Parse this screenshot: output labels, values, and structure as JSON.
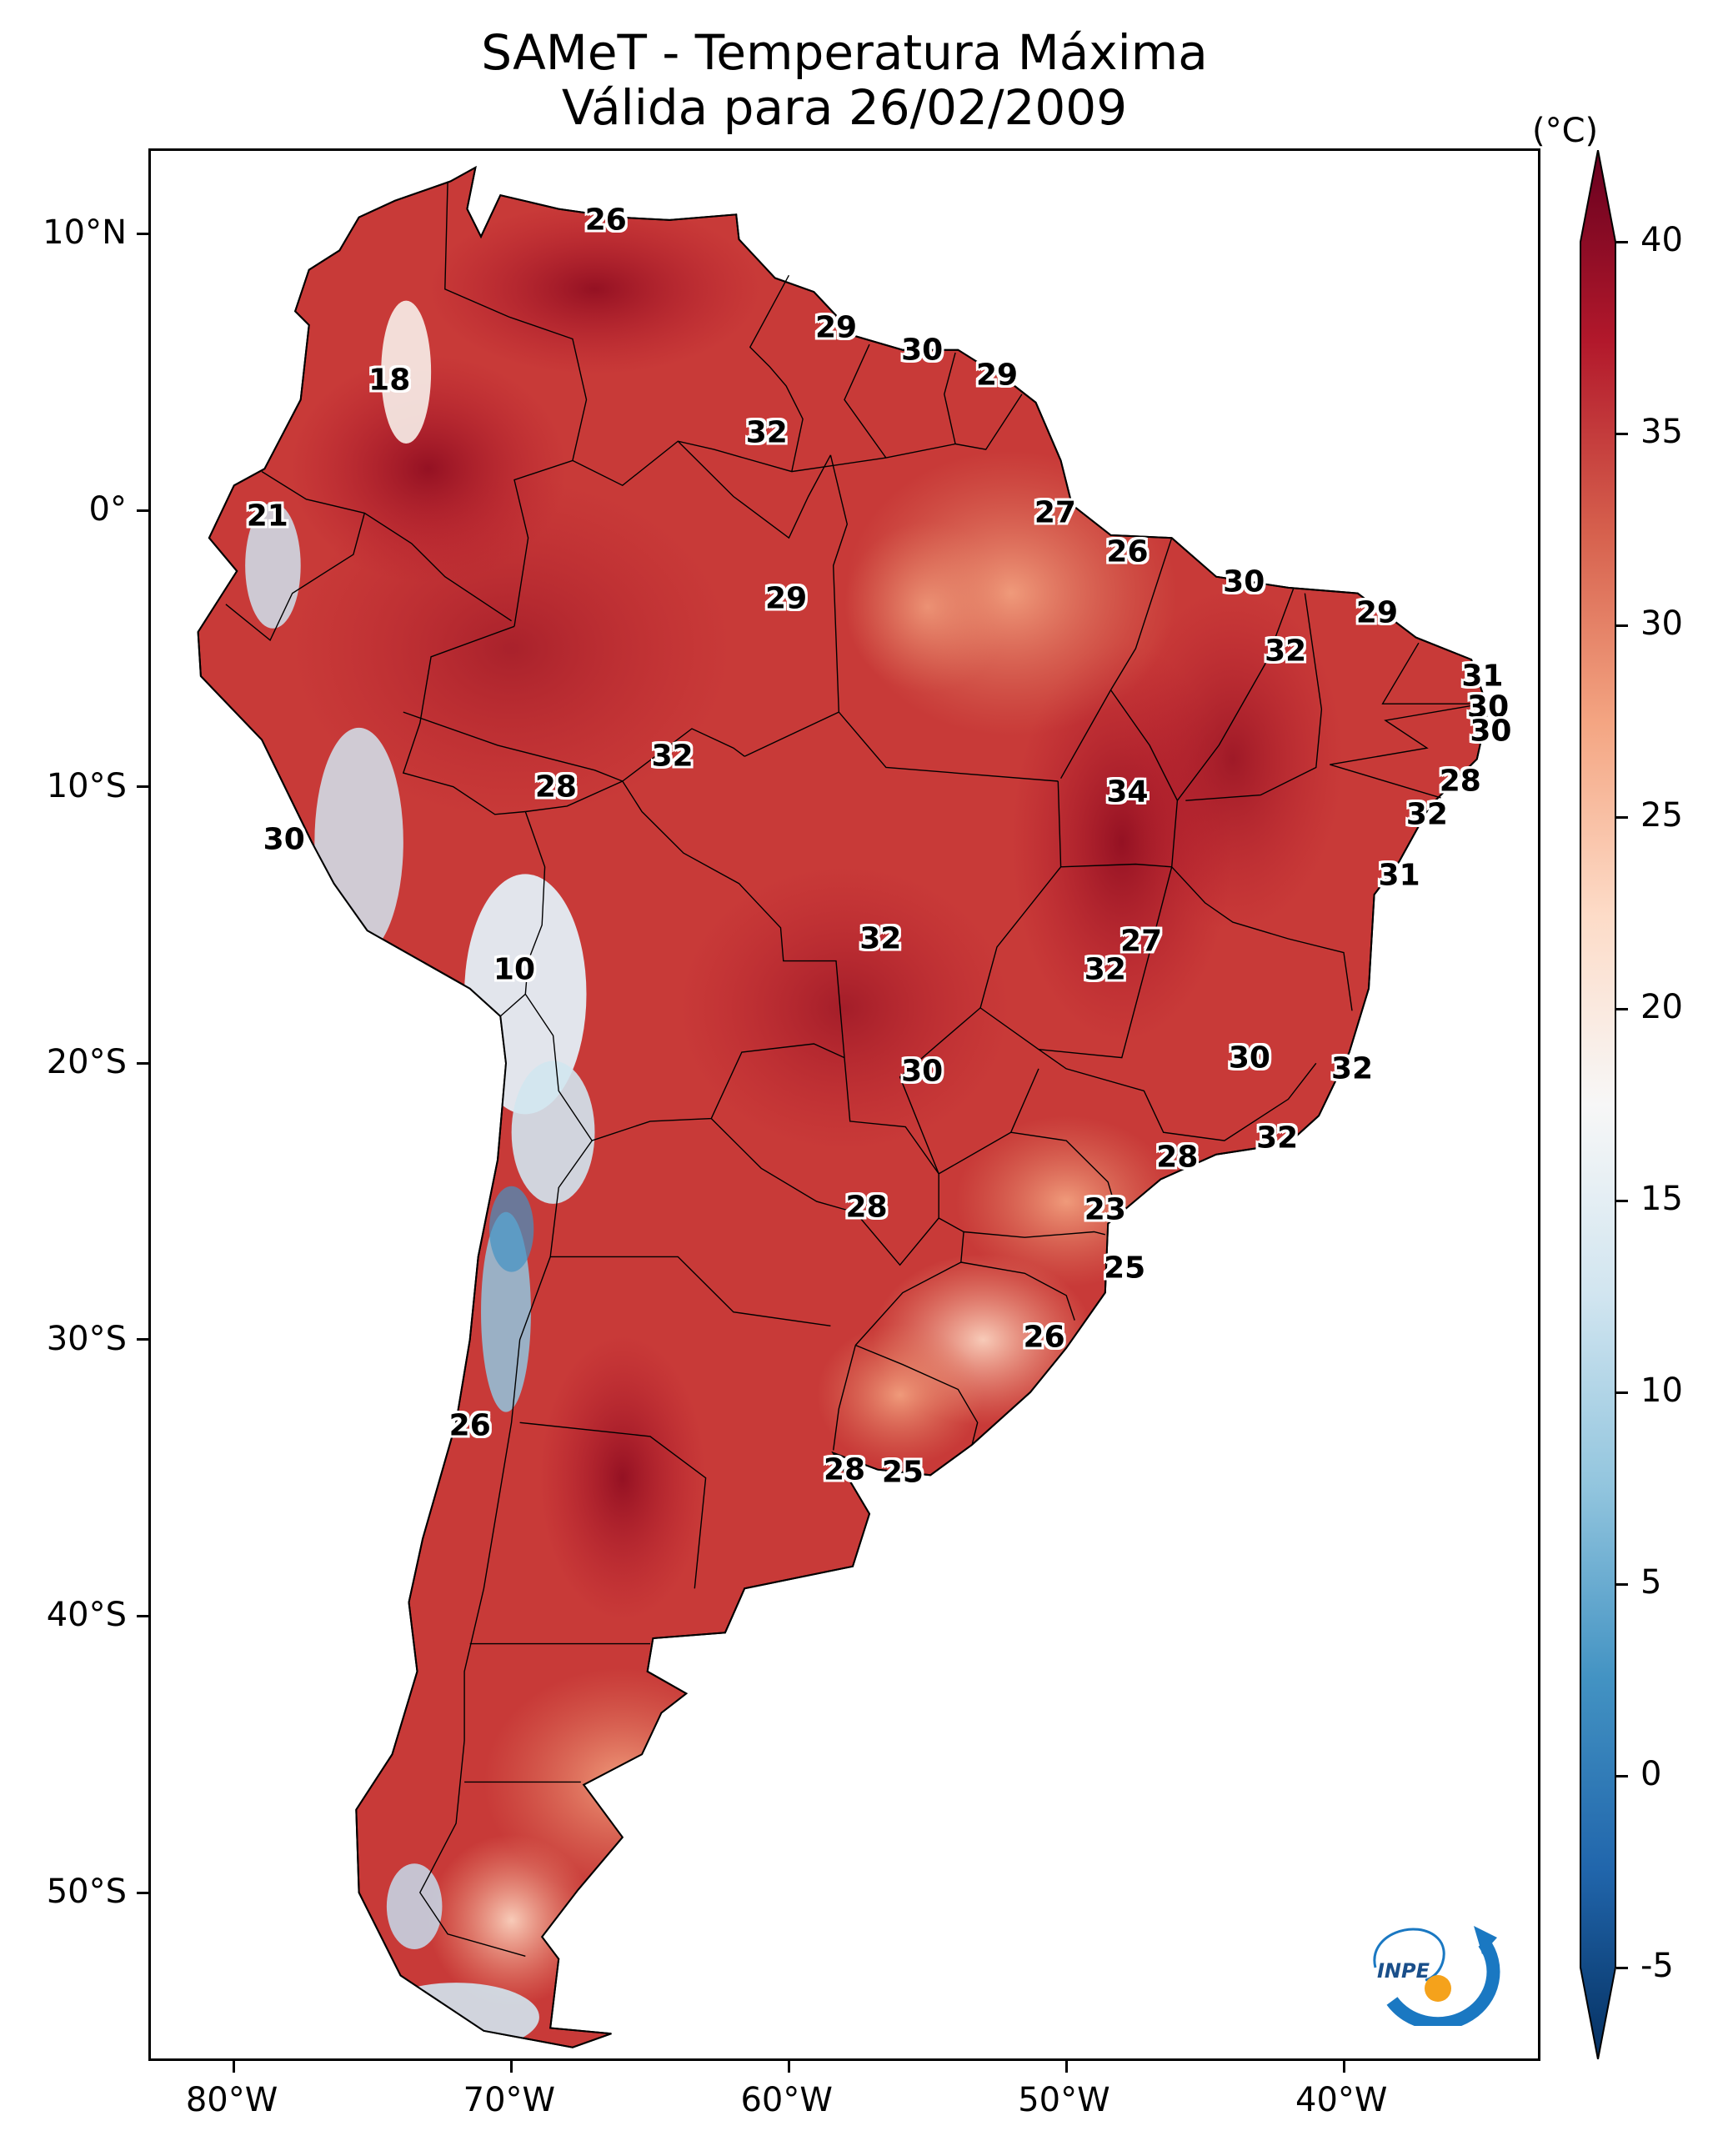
{
  "title": {
    "line1": "SAMeT - Temperatura Máxima",
    "line2": "Válida para 26/02/2009"
  },
  "axes": {
    "lon_labels": [
      "80°W",
      "70°W",
      "60°W",
      "50°W",
      "40°W"
    ],
    "lat_labels": [
      "10°N",
      "0°",
      "10°S",
      "20°S",
      "30°S",
      "40°S",
      "50°S"
    ],
    "lon_range": [
      -83,
      -33
    ],
    "lat_range": [
      13,
      -56
    ]
  },
  "colorbar": {
    "unit": "(°C)",
    "ticks": [
      "40",
      "35",
      "30",
      "25",
      "20",
      "15",
      "10",
      "5",
      "0",
      "-5"
    ],
    "range": [
      -7,
      42
    ],
    "colors": [
      "#053061",
      "#2166ac",
      "#4393c3",
      "#92c5de",
      "#d1e5f0",
      "#f7f7f7",
      "#fddbc7",
      "#f4a582",
      "#d6604d",
      "#b2182b",
      "#67001f"
    ]
  },
  "contour_labels": [
    {
      "text": "26",
      "lon": -66.6,
      "lat": 10.5
    },
    {
      "text": "18",
      "lon": -74.4,
      "lat": 4.7
    },
    {
      "text": "21",
      "lon": -78.8,
      "lat": -0.2
    },
    {
      "text": "29",
      "lon": -58.3,
      "lat": 6.6
    },
    {
      "text": "30",
      "lon": -55.2,
      "lat": 5.8
    },
    {
      "text": "29",
      "lon": -52.5,
      "lat": 4.9
    },
    {
      "text": "32",
      "lon": -60.8,
      "lat": 2.8
    },
    {
      "text": "27",
      "lon": -50.4,
      "lat": -0.1
    },
    {
      "text": "26",
      "lon": -47.8,
      "lat": -1.5
    },
    {
      "text": "29",
      "lon": -60.1,
      "lat": -3.2
    },
    {
      "text": "30",
      "lon": -43.6,
      "lat": -2.6
    },
    {
      "text": "32",
      "lon": -42.1,
      "lat": -5.1
    },
    {
      "text": "29",
      "lon": -38.8,
      "lat": -3.7
    },
    {
      "text": "31",
      "lon": -35.0,
      "lat": -6.0
    },
    {
      "text": "30",
      "lon": -34.8,
      "lat": -7.1
    },
    {
      "text": "30",
      "lon": -34.7,
      "lat": -8.0
    },
    {
      "text": "28",
      "lon": -35.8,
      "lat": -9.8
    },
    {
      "text": "32",
      "lon": -37.0,
      "lat": -11.0
    },
    {
      "text": "31",
      "lon": -38.0,
      "lat": -13.2
    },
    {
      "text": "34",
      "lon": -47.8,
      "lat": -10.2
    },
    {
      "text": "32",
      "lon": -64.2,
      "lat": -8.9
    },
    {
      "text": "28",
      "lon": -68.4,
      "lat": -10.0
    },
    {
      "text": "30",
      "lon": -78.2,
      "lat": -11.9
    },
    {
      "text": "10",
      "lon": -69.9,
      "lat": -16.6
    },
    {
      "text": "32",
      "lon": -56.7,
      "lat": -15.5
    },
    {
      "text": "27",
      "lon": -47.3,
      "lat": -15.6
    },
    {
      "text": "32",
      "lon": -48.6,
      "lat": -16.6
    },
    {
      "text": "30",
      "lon": -55.2,
      "lat": -20.3
    },
    {
      "text": "30",
      "lon": -43.4,
      "lat": -19.8
    },
    {
      "text": "32",
      "lon": -39.7,
      "lat": -20.2
    },
    {
      "text": "32",
      "lon": -42.4,
      "lat": -22.7
    },
    {
      "text": "28",
      "lon": -46.0,
      "lat": -23.4
    },
    {
      "text": "28",
      "lon": -57.2,
      "lat": -25.2
    },
    {
      "text": "23",
      "lon": -48.6,
      "lat": -25.3
    },
    {
      "text": "25",
      "lon": -47.9,
      "lat": -27.4
    },
    {
      "text": "26",
      "lon": -50.8,
      "lat": -29.9
    },
    {
      "text": "26",
      "lon": -71.5,
      "lat": -33.1
    },
    {
      "text": "28",
      "lon": -58.0,
      "lat": -34.7
    },
    {
      "text": "25",
      "lon": -55.9,
      "lat": -34.8
    }
  ],
  "logo": {
    "text": "INPE"
  }
}
